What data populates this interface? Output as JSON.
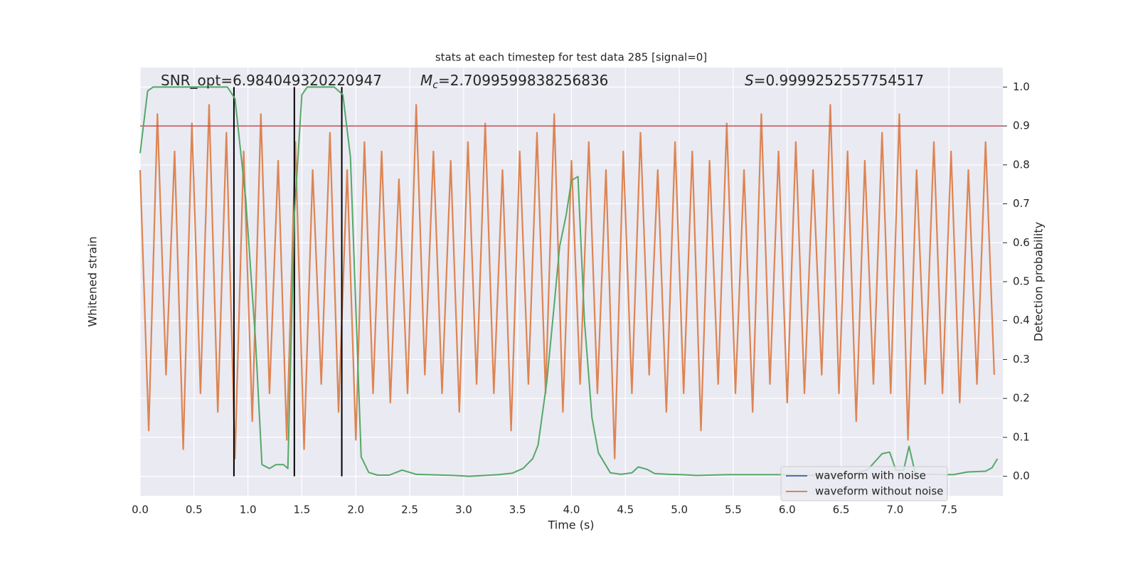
{
  "chart_data": {
    "type": "line",
    "title": "stats at each timestep for test data 285 [signal=0]",
    "xlabel": "Time (s)",
    "ylabel": "Whitened strain",
    "y2label": "Detection probability",
    "xlim": [
      0,
      8.0
    ],
    "xticks": [
      {
        "value": 0,
        "label": "0.0"
      },
      0.5,
      {
        "value": 1,
        "label": "1.0"
      },
      1.5,
      {
        "value": 2,
        "label": "2.0"
      },
      2.5,
      {
        "value": 3,
        "label": "3.0"
      },
      3.5,
      {
        "value": 4,
        "label": "4.0"
      },
      4.5,
      {
        "value": 5,
        "label": "5.0"
      },
      5.5,
      {
        "value": 6,
        "label": "6.0"
      },
      6.5,
      {
        "value": 7,
        "label": "7.0"
      },
      7.5
    ],
    "ylim": [
      -1.15,
      1.15
    ],
    "y2lim": [
      -0.05,
      1.05
    ],
    "y2ticks": [
      {
        "value": 0,
        "label": "0.0"
      },
      0.1,
      0.2,
      0.3,
      0.4,
      0.5,
      0.6,
      0.7,
      0.8,
      0.9,
      {
        "value": 1,
        "label": "1.0"
      }
    ],
    "grid": true,
    "background": "#eaeaf2",
    "legend": "lower right",
    "annotations": [
      {
        "text": "SNR_opt=6.984049320220947"
      },
      {
        "symbol": "M",
        "subscript": "c",
        "text": "=2.7099599838256836"
      },
      {
        "symbol": "S",
        "text": "=0.9999252557754517"
      }
    ],
    "threshold": {
      "value": 0.9,
      "color": "#c44e52"
    },
    "vlines": {
      "values": [
        0.87,
        1.43,
        1.87
      ],
      "color": "#000000"
    },
    "series": [
      {
        "name": "waveform with noise",
        "color": "#4c72b0"
      },
      {
        "name": "waveform without noise",
        "color": "#dd8452",
        "x": [
          0,
          0.08,
          0.16,
          0.24,
          0.32,
          0.4,
          0.48,
          0.56,
          0.64,
          0.72,
          0.8,
          0.88,
          0.96,
          1.04,
          1.12,
          1.2,
          1.28,
          1.36,
          1.44,
          1.52,
          1.6,
          1.68,
          1.76,
          1.84,
          1.92,
          2,
          2.08,
          2.16,
          2.24,
          2.32,
          2.4,
          2.48,
          2.56,
          2.64,
          2.72,
          2.8,
          2.88,
          2.96,
          3.04,
          3.12,
          3.2,
          3.28,
          3.36,
          3.44,
          3.52,
          3.6,
          3.68,
          3.76,
          3.84,
          3.92,
          4,
          4.08,
          4.16,
          4.24,
          4.32,
          4.4,
          4.48,
          4.56,
          4.64,
          4.72,
          4.8,
          4.88,
          4.96,
          5.04,
          5.12,
          5.2,
          5.28,
          5.36,
          5.44,
          5.52,
          5.6,
          5.68,
          5.76,
          5.84,
          5.92,
          6,
          6.08,
          6.16,
          6.24,
          6.32,
          6.4,
          6.48,
          6.56,
          6.64,
          6.72,
          6.8,
          6.88,
          6.96,
          7.04,
          7.12,
          7.2,
          7.28,
          7.36,
          7.44,
          7.52,
          7.6,
          7.68,
          7.76,
          7.84,
          7.92
        ],
        "values": [
          0.6,
          -0.8,
          0.9,
          -0.5,
          0.7,
          -0.9,
          0.85,
          -0.6,
          0.95,
          -0.7,
          0.8,
          -0.95,
          0.7,
          -0.75,
          0.9,
          -0.6,
          0.65,
          -0.85,
          0.75,
          -0.9,
          0.6,
          -0.55,
          0.8,
          -0.7,
          0.6,
          -0.85,
          0.75,
          -0.6,
          0.7,
          -0.65,
          0.55,
          -0.6,
          0.95,
          -0.5,
          0.7,
          -0.6,
          0.65,
          -0.7,
          0.75,
          -0.55,
          0.85,
          -0.6,
          0.6,
          -0.8,
          0.7,
          -0.55,
          0.8,
          -0.6,
          0.9,
          -0.7,
          0.65,
          -0.55,
          0.75,
          -0.6,
          0.6,
          -0.95,
          0.7,
          -0.6,
          0.8,
          -0.5,
          0.6,
          -0.7,
          0.75,
          -0.6,
          0.7,
          -0.8,
          0.65,
          -0.55,
          0.85,
          -0.6,
          0.6,
          -0.7,
          0.9,
          -0.55,
          0.7,
          -0.65,
          0.75,
          -0.6,
          0.6,
          -0.5,
          0.95,
          -0.6,
          0.7,
          -0.75,
          0.65,
          -0.55,
          0.8,
          -0.6,
          0.9,
          -0.85,
          0.6,
          -0.55,
          0.75,
          -0.6,
          0.7,
          -0.65,
          0.6,
          -0.55,
          0.75,
          -0.5
        ]
      },
      {
        "color": "#55a868",
        "axis": "y2",
        "x": [
          0,
          0.07,
          0.12,
          0.81,
          0.88,
          0.98,
          1.07,
          1.13,
          1.2,
          1.26,
          1.33,
          1.37,
          1.43,
          1.5,
          1.55,
          1.8,
          1.88,
          1.95,
          2.05,
          2.12,
          2.2,
          2.31,
          2.43,
          2.56,
          2.92,
          3.05,
          3.32,
          3.45,
          3.55,
          3.64,
          3.69,
          3.77,
          3.84,
          3.89,
          3.95,
          4.0,
          4.06,
          4.12,
          4.19,
          4.25,
          4.36,
          4.46,
          4.56,
          4.62,
          4.7,
          4.77,
          4.9,
          5.03,
          5.16,
          5.43,
          5.63,
          5.96,
          6.29,
          6.62,
          6.75,
          6.88,
          6.95,
          7.01,
          7.08,
          7.13,
          7.19,
          7.28,
          7.54,
          7.67,
          7.84,
          7.9,
          7.95
        ],
        "values": [
          0.83,
          0.99,
          1.0,
          1.0,
          0.97,
          0.71,
          0.35,
          0.03,
          0.02,
          0.03,
          0.03,
          0.02,
          0.67,
          0.98,
          1.0,
          1.0,
          0.98,
          0.82,
          0.05,
          0.01,
          0.003,
          0.003,
          0.016,
          0.005,
          0.002,
          0.0,
          0.004,
          0.008,
          0.02,
          0.045,
          0.08,
          0.24,
          0.44,
          0.59,
          0.67,
          0.76,
          0.77,
          0.4,
          0.15,
          0.06,
          0.009,
          0.005,
          0.009,
          0.024,
          0.018,
          0.007,
          0.005,
          0.004,
          0.002,
          0.004,
          0.004,
          0.004,
          0.002,
          0.005,
          0.018,
          0.058,
          0.062,
          0.015,
          0.016,
          0.077,
          0.004,
          0.005,
          0.004,
          0.011,
          0.013,
          0.022,
          0.045
        ]
      }
    ]
  }
}
